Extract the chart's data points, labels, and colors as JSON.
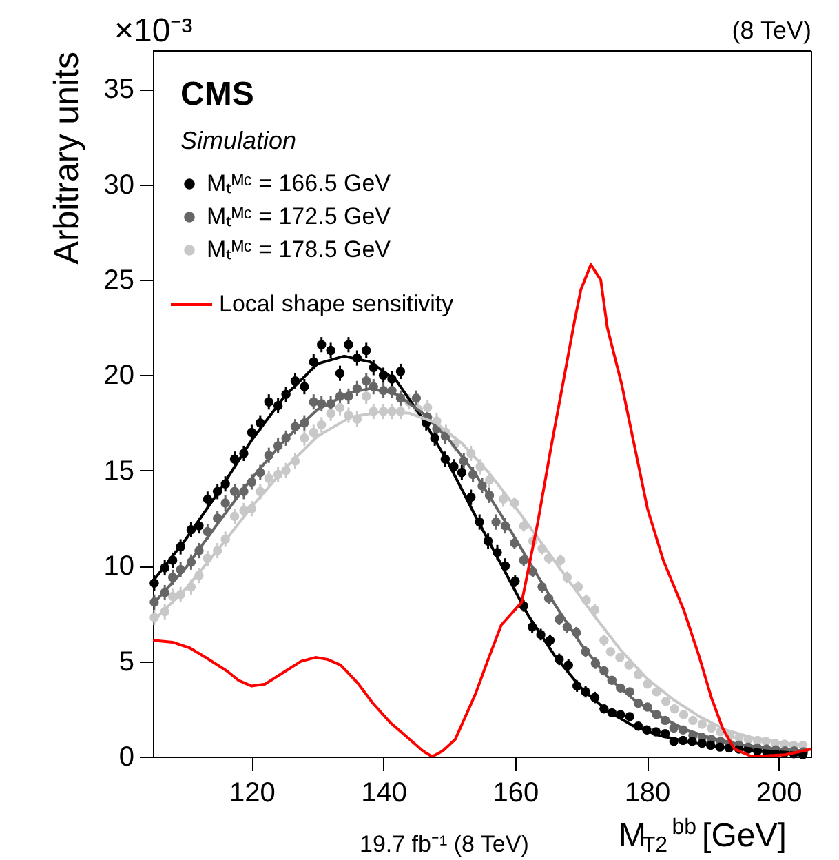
{
  "chart_data": {
    "type": "scatter",
    "xlabel": "M$_{T2}$$^{bb}$ [GeV]",
    "ylabel": "Arbitrary units",
    "xlim": [
      105,
      205
    ],
    "ylim": [
      0,
      37
    ],
    "xticks": [
      120,
      140,
      160,
      180,
      200
    ],
    "yticks": [
      0,
      5,
      10,
      15,
      20,
      25,
      30,
      35
    ],
    "grid": false,
    "legend": "top left",
    "marker": "circle",
    "annotations": [
      "×10⁻³",
      "(8 TeV)",
      "CMS",
      "Simulation",
      "19.7 fb⁻¹ (8 TeV)"
    ],
    "series": [
      {
        "name": "Mₜᴹᶜ = 166.5 GeV",
        "color": "#000000",
        "x": [
          105.2,
          106.8,
          108,
          109.2,
          110.8,
          112,
          113.3,
          114.8,
          116,
          117.4,
          118.8,
          120,
          121.3,
          122.6,
          124,
          125.2,
          126.6,
          128,
          129.4,
          130.6,
          132,
          133.4,
          134.7,
          136,
          137.4,
          138.5,
          140,
          141.3,
          142.6,
          146.5,
          147.8,
          149.4,
          150.7,
          151.9,
          153.3,
          154.6,
          155.9,
          157.3,
          158.5,
          160,
          161.3,
          162.6,
          163.9,
          165.3,
          166.7,
          168.1,
          169.4,
          170.7,
          172.1,
          173.5,
          174.7,
          176,
          177.4,
          178.7,
          180,
          181.4,
          182.8,
          184.1,
          185.5,
          186.9,
          188.4,
          189.7,
          191.1,
          192.5,
          194,
          195.4,
          196.8,
          198.2,
          199.5,
          200.9,
          202.3,
          203.7
        ],
        "values": [
          9.1,
          9.9,
          10.3,
          11.0,
          11.9,
          12.1,
          13.5,
          13.9,
          14.3,
          15.6,
          15.9,
          17.0,
          17.5,
          18.6,
          18.4,
          19.0,
          19.7,
          19.4,
          20.7,
          21.6,
          21.3,
          20.1,
          21.6,
          20.9,
          21.3,
          20.4,
          20.0,
          19.8,
          20.2,
          17.5,
          16.7,
          15.6,
          15.2,
          14.9,
          13.6,
          12.3,
          11.3,
          10.7,
          10.0,
          9.2,
          7.9,
          6.8,
          6.4,
          6.1,
          5.1,
          4.8,
          3.7,
          3.4,
          3.1,
          2.5,
          2.3,
          2.2,
          2.1,
          1.6,
          1.4,
          1.3,
          1.2,
          0.8,
          0.85,
          0.8,
          0.7,
          0.6,
          0.5,
          0.45,
          0.4,
          0.4,
          0.3,
          0.25,
          0.2,
          0.2,
          0.15,
          0.1
        ],
        "errors": [
          0.4,
          0.4,
          0.4,
          0.4,
          0.4,
          0.4,
          0.4,
          0.4,
          0.4,
          0.4,
          0.4,
          0.4,
          0.4,
          0.4,
          0.4,
          0.4,
          0.4,
          0.4,
          0.4,
          0.4,
          0.4,
          0.4,
          0.4,
          0.4,
          0.4,
          0.4,
          0.4,
          0.4,
          0.4,
          0.4,
          0.4,
          0.4,
          0.4,
          0.4,
          0.4,
          0.4,
          0.4,
          0.4,
          0.4,
          0.3,
          0.3,
          0.3,
          0.3,
          0.3,
          0.3,
          0.3,
          0.3,
          0.3,
          0.3,
          0.2,
          0.2,
          0.2,
          0.2,
          0.2,
          0.2,
          0.2,
          0.2,
          0.1,
          0.1,
          0.1,
          0.1,
          0.1,
          0.1,
          0.1,
          0.1,
          0.1,
          0.1,
          0.1,
          0.1,
          0.1,
          0.1,
          0.1
        ]
      },
      {
        "name": "Mₜᴹᶜ = 172.5 GeV",
        "color": "#666666",
        "x": [
          105.2,
          106.8,
          108,
          109.2,
          110.8,
          112,
          113.3,
          114.8,
          116,
          117.4,
          118.8,
          120,
          121.3,
          122.6,
          124,
          125.2,
          126.6,
          128,
          129.4,
          130.6,
          132,
          133.4,
          134.7,
          136,
          137.4,
          138.5,
          140,
          141.3,
          142.6,
          145,
          146.7,
          148.1,
          149.4,
          152.2,
          153.6,
          155,
          156.1,
          157.1,
          158.5,
          159.9,
          161.3,
          162.7,
          164.1,
          165.1,
          166.7,
          167.9,
          169.3,
          170.7,
          172.2,
          173.5,
          174.7,
          176,
          177.4,
          178.7,
          180.1,
          181.5,
          182.8,
          184.1,
          185.5,
          187,
          188.4,
          189.8,
          191.2,
          192.6,
          194,
          195.4,
          196.8,
          198.2,
          199.6,
          201,
          202.4,
          203.8
        ],
        "values": [
          8.1,
          8.6,
          9.4,
          9.8,
          10.2,
          10.8,
          11.8,
          12.5,
          13.3,
          13.9,
          13.9,
          14.4,
          14.9,
          15.8,
          16.3,
          16.7,
          17.3,
          17.5,
          18.6,
          18.5,
          18.5,
          18.9,
          18.9,
          19.3,
          19.7,
          19.4,
          19.2,
          19.2,
          18.8,
          18.8,
          17.8,
          17.2,
          16.8,
          15.5,
          14.8,
          14.2,
          13.7,
          12.3,
          12.1,
          11.2,
          10.3,
          9.7,
          8.9,
          8.3,
          7.2,
          6.8,
          6.5,
          5.5,
          4.9,
          4.5,
          4.0,
          3.6,
          3.4,
          2.8,
          2.6,
          2.2,
          1.9,
          1.5,
          1.4,
          1.1,
          1.0,
          0.9,
          0.8,
          0.65,
          0.6,
          0.5,
          0.45,
          0.4,
          0.35,
          0.3,
          0.3,
          0.25
        ],
        "errors": [
          0.4,
          0.4,
          0.4,
          0.4,
          0.4,
          0.4,
          0.4,
          0.4,
          0.4,
          0.4,
          0.4,
          0.4,
          0.4,
          0.4,
          0.4,
          0.4,
          0.4,
          0.4,
          0.4,
          0.4,
          0.4,
          0.4,
          0.4,
          0.4,
          0.4,
          0.4,
          0.4,
          0.4,
          0.4,
          0.4,
          0.4,
          0.4,
          0.4,
          0.4,
          0.4,
          0.4,
          0.4,
          0.4,
          0.4,
          0.3,
          0.3,
          0.3,
          0.3,
          0.3,
          0.3,
          0.3,
          0.3,
          0.3,
          0.3,
          0.2,
          0.2,
          0.2,
          0.2,
          0.2,
          0.2,
          0.2,
          0.2,
          0.1,
          0.1,
          0.1,
          0.1,
          0.1,
          0.1,
          0.1,
          0.1,
          0.1,
          0.1,
          0.1,
          0.1,
          0.1,
          0.1,
          0.1
        ]
      },
      {
        "name": "Mₜᴹᶜ = 178.5 GeV",
        "color": "#c8c8c8",
        "x": [
          105.2,
          106.8,
          108,
          109.2,
          110.8,
          112,
          113.3,
          114.8,
          116,
          117.4,
          118.8,
          120,
          121.3,
          122.6,
          124,
          125.2,
          126.6,
          128,
          129.4,
          130.6,
          132,
          133.4,
          134.7,
          136,
          137.4,
          138.5,
          140,
          141.3,
          142.6,
          143.9,
          145.3,
          146.7,
          148.1,
          149.5,
          150.9,
          153.3,
          154.7,
          156.1,
          158.2,
          159.9,
          161.3,
          162.7,
          164.1,
          165.1,
          166.9,
          167.9,
          169.6,
          170.8,
          172.1,
          173.5,
          174.5,
          175.9,
          177.3,
          178.7,
          180.1,
          181.5,
          182.9,
          184.2,
          185.6,
          187,
          188.4,
          189.8,
          191.2,
          192.6,
          194,
          195.4,
          196.8,
          198.1,
          199.5,
          200.9,
          202.3,
          203.7
        ],
        "values": [
          7.3,
          7.6,
          8.4,
          8.5,
          8.9,
          9.5,
          10.4,
          10.8,
          11.4,
          12.6,
          12.9,
          13.0,
          13.9,
          14.6,
          14.8,
          15.0,
          15.5,
          16.7,
          17.0,
          17.4,
          18.0,
          18.3,
          17.9,
          17.7,
          18.9,
          18.1,
          18.1,
          18.1,
          18.1,
          18.6,
          18.2,
          18.3,
          17.6,
          17.0,
          16.4,
          15.9,
          15.2,
          14.5,
          13.5,
          13.3,
          12.1,
          11.3,
          10.9,
          10.4,
          10.3,
          9.4,
          8.9,
          8.2,
          7.7,
          6.1,
          5.5,
          5.2,
          4.8,
          4.3,
          3.8,
          3.4,
          2.9,
          2.5,
          2.2,
          1.9,
          1.7,
          1.5,
          1.3,
          1.1,
          1.0,
          0.9,
          0.85,
          0.8,
          0.7,
          0.65,
          0.6,
          0.6
        ],
        "errors": [
          0.4,
          0.4,
          0.4,
          0.4,
          0.4,
          0.4,
          0.4,
          0.4,
          0.4,
          0.4,
          0.4,
          0.4,
          0.4,
          0.4,
          0.4,
          0.4,
          0.4,
          0.4,
          0.4,
          0.4,
          0.4,
          0.4,
          0.4,
          0.4,
          0.4,
          0.4,
          0.4,
          0.4,
          0.4,
          0.4,
          0.4,
          0.4,
          0.4,
          0.4,
          0.4,
          0.4,
          0.4,
          0.4,
          0.4,
          0.3,
          0.3,
          0.3,
          0.3,
          0.3,
          0.3,
          0.3,
          0.3,
          0.3,
          0.3,
          0.3,
          0.2,
          0.2,
          0.2,
          0.2,
          0.2,
          0.2,
          0.2,
          0.2,
          0.1,
          0.1,
          0.1,
          0.1,
          0.1,
          0.1,
          0.1,
          0.1,
          0.1,
          0.1,
          0.1,
          0.1,
          0.1,
          0.1
        ]
      },
      {
        "color": "#000000",
        "type": "line",
        "marker": "none",
        "line_style": "solid",
        "x": [
          105,
          110,
          115,
          120,
          125,
          130,
          134,
          138,
          142,
          146,
          150,
          154,
          158,
          162,
          166,
          170,
          174,
          178,
          182,
          186,
          190,
          194,
          198,
          204
        ],
        "values": [
          9.2,
          11.4,
          13.9,
          16.6,
          18.9,
          20.6,
          21.0,
          20.7,
          19.7,
          17.7,
          15.3,
          12.6,
          10.0,
          7.4,
          5.3,
          3.6,
          2.4,
          1.6,
          1.1,
          0.8,
          0.55,
          0.4,
          0.25,
          0.1
        ]
      },
      {
        "color": "#666666",
        "type": "line",
        "marker": "none",
        "line_style": "solid",
        "x": [
          105,
          110,
          115,
          120,
          125,
          130,
          135,
          138,
          142,
          146,
          150,
          154,
          158,
          162,
          166,
          170,
          174,
          178,
          182,
          186,
          190,
          194,
          198,
          204
        ],
        "values": [
          8.0,
          9.9,
          12.3,
          14.6,
          16.6,
          18.2,
          19.1,
          19.3,
          19.0,
          18.0,
          16.6,
          14.8,
          12.6,
          10.3,
          8.0,
          5.9,
          4.2,
          3.0,
          2.1,
          1.4,
          0.95,
          0.65,
          0.45,
          0.3
        ]
      },
      {
        "color": "#c8c8c8",
        "type": "line",
        "marker": "none",
        "line_style": "solid",
        "x": [
          105,
          110,
          115,
          120,
          125,
          130,
          135,
          140,
          144,
          148,
          152,
          156,
          160,
          164,
          168,
          172,
          176,
          180,
          184,
          188,
          192,
          196,
          200,
          204
        ],
        "values": [
          7.1,
          8.8,
          10.9,
          13.1,
          15.1,
          16.8,
          17.8,
          18.1,
          18.0,
          17.5,
          16.4,
          14.9,
          13.1,
          11.2,
          9.3,
          7.4,
          5.6,
          4.1,
          3.0,
          2.1,
          1.4,
          1.0,
          0.75,
          0.6
        ]
      },
      {
        "name": "Local shape sensitivity",
        "color": "#ff0000",
        "type": "line",
        "marker": "none",
        "line_style": "solid",
        "x": [
          105,
          108,
          110.6,
          113,
          116.2,
          118,
          120,
          122,
          125.2,
          127.5,
          129.7,
          131.5,
          133.5,
          136,
          138.4,
          141,
          144,
          146,
          147.4,
          149,
          150.9,
          154,
          155.8,
          157.9,
          161,
          163.4,
          165.5,
          167.5,
          169,
          170,
          171.5,
          173,
          174,
          176.2,
          178,
          180.1,
          182.5,
          185.6,
          188,
          189.8,
          191.5,
          193.3,
          196,
          198.8,
          201,
          203.7,
          205
        ],
        "values": [
          6.1,
          6.0,
          5.7,
          5.2,
          4.5,
          4.0,
          3.7,
          3.8,
          4.5,
          5.0,
          5.2,
          5.1,
          4.8,
          3.9,
          2.8,
          1.8,
          0.9,
          0.3,
          0,
          0.3,
          0.9,
          3.3,
          5.0,
          6.9,
          8.1,
          12.2,
          16.3,
          20,
          22.8,
          24.5,
          25.8,
          25.0,
          22.5,
          19.5,
          16.5,
          13.0,
          10.3,
          7.7,
          5.2,
          3.1,
          1.5,
          0.4,
          0,
          0.05,
          0.1,
          0.3,
          0.4
        ]
      }
    ]
  }
}
